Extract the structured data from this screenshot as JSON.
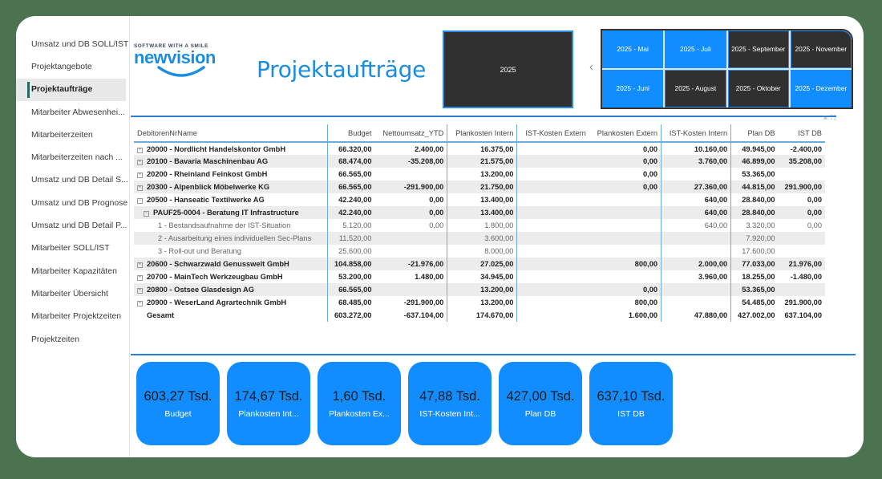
{
  "sidebar": {
    "items": [
      {
        "label": "Umsatz und DB SOLL/IST"
      },
      {
        "label": "Projektangebote"
      },
      {
        "label": "Projektaufträge",
        "active": true
      },
      {
        "label": "Mitarbeiter Abwesenhei..."
      },
      {
        "label": "Mitarbeiterzeiten"
      },
      {
        "label": "Mitarbeiterzeiten nach ..."
      },
      {
        "label": "Umsatz und DB Detail S..."
      },
      {
        "label": "Umsatz und DB Prognose"
      },
      {
        "label": "Umsatz und DB Detail P..."
      },
      {
        "label": "Mitarbeiter SOLL/IST"
      },
      {
        "label": "Mitarbeiter Kapazitäten"
      },
      {
        "label": "Mitarbeiter Übersicht"
      },
      {
        "label": "Mitarbeiter Projektzeiten"
      },
      {
        "label": "Projektzeiten"
      }
    ]
  },
  "header": {
    "logo_tagline": "SOFTWARE WITH A SMILE",
    "logo_word": "newvision",
    "title": "Projektaufträge"
  },
  "slicers": {
    "year": "2025",
    "prev_arrow": "‹",
    "months": [
      {
        "label": "2025 - Mai",
        "selected": true
      },
      {
        "label": "2025 - Juli",
        "selected": true
      },
      {
        "label": "2025 - September",
        "selected": false
      },
      {
        "label": "2025 - November",
        "selected": false
      },
      {
        "label": "2025 - Juni",
        "selected": true
      },
      {
        "label": "2025 - August",
        "selected": false
      },
      {
        "label": "2025 - Oktober",
        "selected": false
      },
      {
        "label": "2025 - Dezember",
        "selected": true
      }
    ]
  },
  "visual_icons": {
    "filter": "⩸",
    "focus": "⛶"
  },
  "table": {
    "headers": [
      "DebitorenNrName",
      "Budget",
      "Nettoumsatz_YTD",
      "Plankosten Intern",
      "IST-Kosten Extern",
      "Plankosten Extern",
      "IST-Kosten Intern",
      "Plan DB",
      "IST DB"
    ],
    "rows": [
      {
        "level": 0,
        "expand": "+",
        "cells": [
          "20000 - Nordlicht Handelskontor GmbH",
          "66.320,00",
          "2.400,00",
          "16.375,00",
          "",
          "0,00",
          "10.160,00",
          "49.945,00",
          "-2.400,00"
        ]
      },
      {
        "level": 0,
        "expand": "+",
        "cells": [
          "20100 - Bavaria Maschinenbau AG",
          "68.474,00",
          "-35.208,00",
          "21.575,00",
          "",
          "0,00",
          "3.760,00",
          "46.899,00",
          "35.208,00"
        ]
      },
      {
        "level": 0,
        "expand": "+",
        "cells": [
          "20200 - Rheinland Feinkost GmbH",
          "66.565,00",
          "",
          "13.200,00",
          "",
          "0,00",
          "",
          "53.365,00",
          ""
        ]
      },
      {
        "level": 0,
        "expand": "+",
        "cells": [
          "20300 - Alpenblick Möbelwerke KG",
          "66.565,00",
          "-291.900,00",
          "21.750,00",
          "",
          "0,00",
          "27.360,00",
          "44.815,00",
          "291.900,00"
        ]
      },
      {
        "level": 0,
        "expand": "−",
        "cells": [
          "20500 - Hanseatic Textilwerke AG",
          "42.240,00",
          "0,00",
          "13.400,00",
          "",
          "",
          "640,00",
          "28.840,00",
          "0,00"
        ]
      },
      {
        "level": 1,
        "expand": "−",
        "cells": [
          "PAUF25-0004 - Beratung IT Infrastructure",
          "42.240,00",
          "0,00",
          "13.400,00",
          "",
          "",
          "640,00",
          "28.840,00",
          "0,00"
        ]
      },
      {
        "level": 2,
        "expand": "",
        "cells": [
          "1 - Bestandsaufnahme der IST-Situation",
          "5.120,00",
          "0,00",
          "1.800,00",
          "",
          "",
          "640,00",
          "3.320,00",
          "0,00"
        ]
      },
      {
        "level": 2,
        "expand": "",
        "cells": [
          "2 - Ausarbeitung eines individuellen Sec-Plans",
          "11.520,00",
          "",
          "3.600,00",
          "",
          "",
          "",
          "7.920,00",
          ""
        ]
      },
      {
        "level": 2,
        "expand": "",
        "cells": [
          "3 - Roll-out und Beratung",
          "25.600,00",
          "",
          "8.000,00",
          "",
          "",
          "",
          "17.600,00",
          ""
        ]
      },
      {
        "level": 0,
        "expand": "+",
        "cells": [
          "20600 - Schwarzwald Genusswelt GmbH",
          "104.858,00",
          "-21.976,00",
          "27.025,00",
          "",
          "800,00",
          "2.000,00",
          "77.033,00",
          "21.976,00"
        ]
      },
      {
        "level": 0,
        "expand": "+",
        "cells": [
          "20700 - MainTech Werkzeugbau GmbH",
          "53.200,00",
          "1.480,00",
          "34.945,00",
          "",
          "",
          "3.960,00",
          "18.255,00",
          "-1.480,00"
        ]
      },
      {
        "level": 0,
        "expand": "+",
        "cells": [
          "20800 - Ostsee Glasdesign AG",
          "66.565,00",
          "",
          "13.200,00",
          "",
          "0,00",
          "",
          "53.365,00",
          ""
        ]
      },
      {
        "level": 0,
        "expand": "+",
        "cells": [
          "20900 - WeserLand Agrartechnik GmbH",
          "68.485,00",
          "-291.900,00",
          "13.200,00",
          "",
          "800,00",
          "",
          "54.485,00",
          "291.900,00"
        ]
      }
    ],
    "total": [
      "Gesamt",
      "603.272,00",
      "-637.104,00",
      "174.670,00",
      "",
      "1.600,00",
      "47.880,00",
      "427.002,00",
      "637.104,00"
    ]
  },
  "kpis": [
    {
      "value": "603,27 Tsd.",
      "label": "Budget"
    },
    {
      "value": "174,67 Tsd.",
      "label": "Plankosten Int..."
    },
    {
      "value": "1,60 Tsd.",
      "label": "Plankosten Ex..."
    },
    {
      "value": "47,88 Tsd.",
      "label": "IST-Kosten Int..."
    },
    {
      "value": "427,00 Tsd.",
      "label": "Plan DB"
    },
    {
      "value": "637,10 Tsd.",
      "label": "IST DB"
    }
  ],
  "colors": {
    "background": "#4b7350",
    "accent": "#118dff",
    "title": "#1a8de0",
    "slicer_dark": "#303030"
  }
}
